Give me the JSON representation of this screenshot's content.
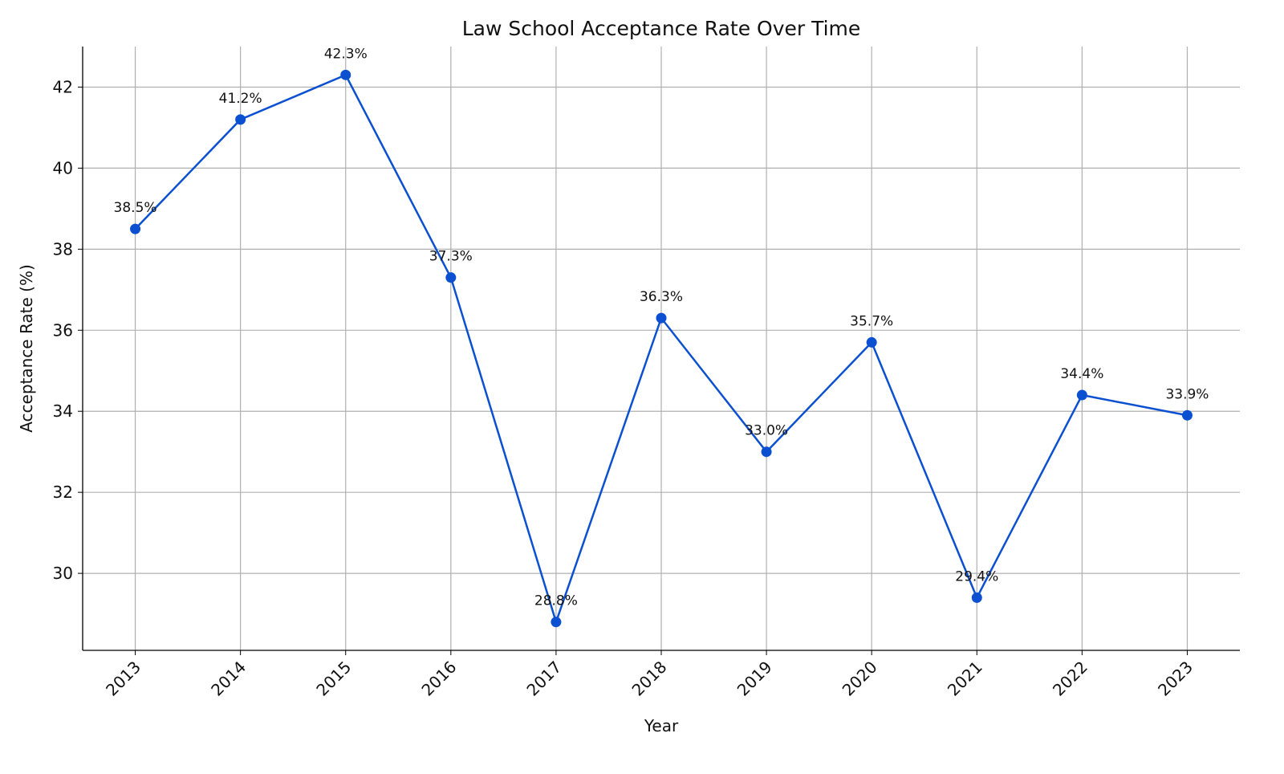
{
  "chart_data": {
    "type": "line",
    "title": "Law School Acceptance Rate Over Time",
    "xlabel": "Year",
    "ylabel": "Acceptance Rate (%)",
    "x": [
      2013,
      2014,
      2015,
      2016,
      2017,
      2018,
      2019,
      2020,
      2021,
      2022,
      2023
    ],
    "categories": [
      "2013",
      "2014",
      "2015",
      "2016",
      "2017",
      "2018",
      "2019",
      "2020",
      "2021",
      "2022",
      "2023"
    ],
    "values": [
      38.5,
      41.2,
      42.3,
      37.3,
      28.8,
      36.3,
      33.0,
      35.7,
      29.4,
      34.4,
      33.9
    ],
    "data_labels": [
      "38.5%",
      "41.2%",
      "42.3%",
      "37.3%",
      "28.8%",
      "36.3%",
      "33.0%",
      "35.7%",
      "29.4%",
      "34.4%",
      "33.9%"
    ],
    "yticks": [
      "30",
      "32",
      "34",
      "36",
      "38",
      "40",
      "42"
    ],
    "ylim": [
      28.1,
      43.0
    ],
    "xlim": [
      2012.5,
      2023.5
    ],
    "grid": true,
    "line_color": "#0B50D0",
    "grid_color": "#b0b0b0"
  }
}
